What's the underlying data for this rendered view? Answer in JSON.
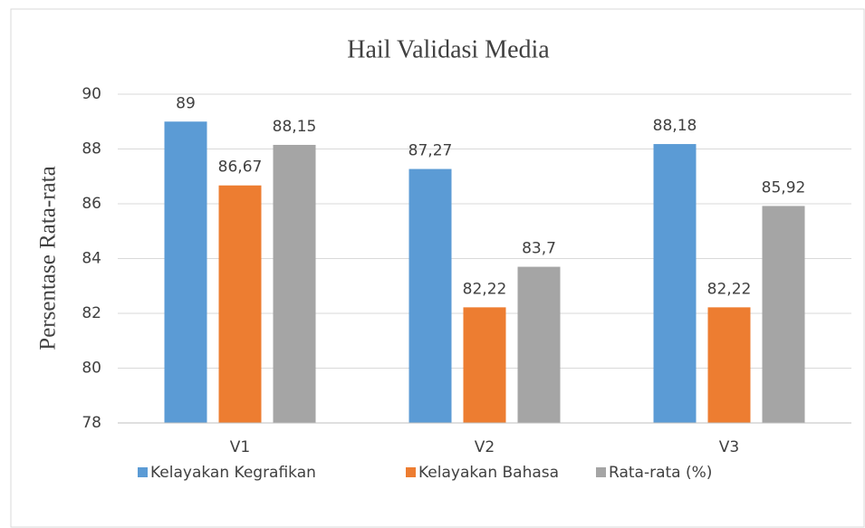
{
  "chart_data": {
    "type": "bar",
    "title": "Hail Validasi Media",
    "y_label": "Persentase Rata-rata",
    "categories": [
      "V1",
      "V2",
      "V3"
    ],
    "series": [
      {
        "name": "Kelayakan Kegrafikan",
        "color": "#5b9bd5",
        "values": [
          89,
          87.27,
          88.18
        ],
        "value_labels": [
          "89",
          "87,27",
          "88,18"
        ]
      },
      {
        "name": "Kelayakan Bahasa",
        "color": "#ed7d31",
        "values": [
          86.67,
          82.22,
          82.22
        ],
        "value_labels": [
          "86,67",
          "82,22",
          "82,22"
        ]
      },
      {
        "name": "Rata-rata (%)",
        "color": "#a5a5a5",
        "values": [
          88.15,
          83.7,
          85.92
        ],
        "value_labels": [
          "88,15",
          "83,7",
          "85,92"
        ]
      }
    ],
    "ylim": [
      78,
      90
    ],
    "yticks": [
      78,
      80,
      82,
      84,
      86,
      88,
      90
    ],
    "grid": true,
    "legend": "bottom"
  }
}
